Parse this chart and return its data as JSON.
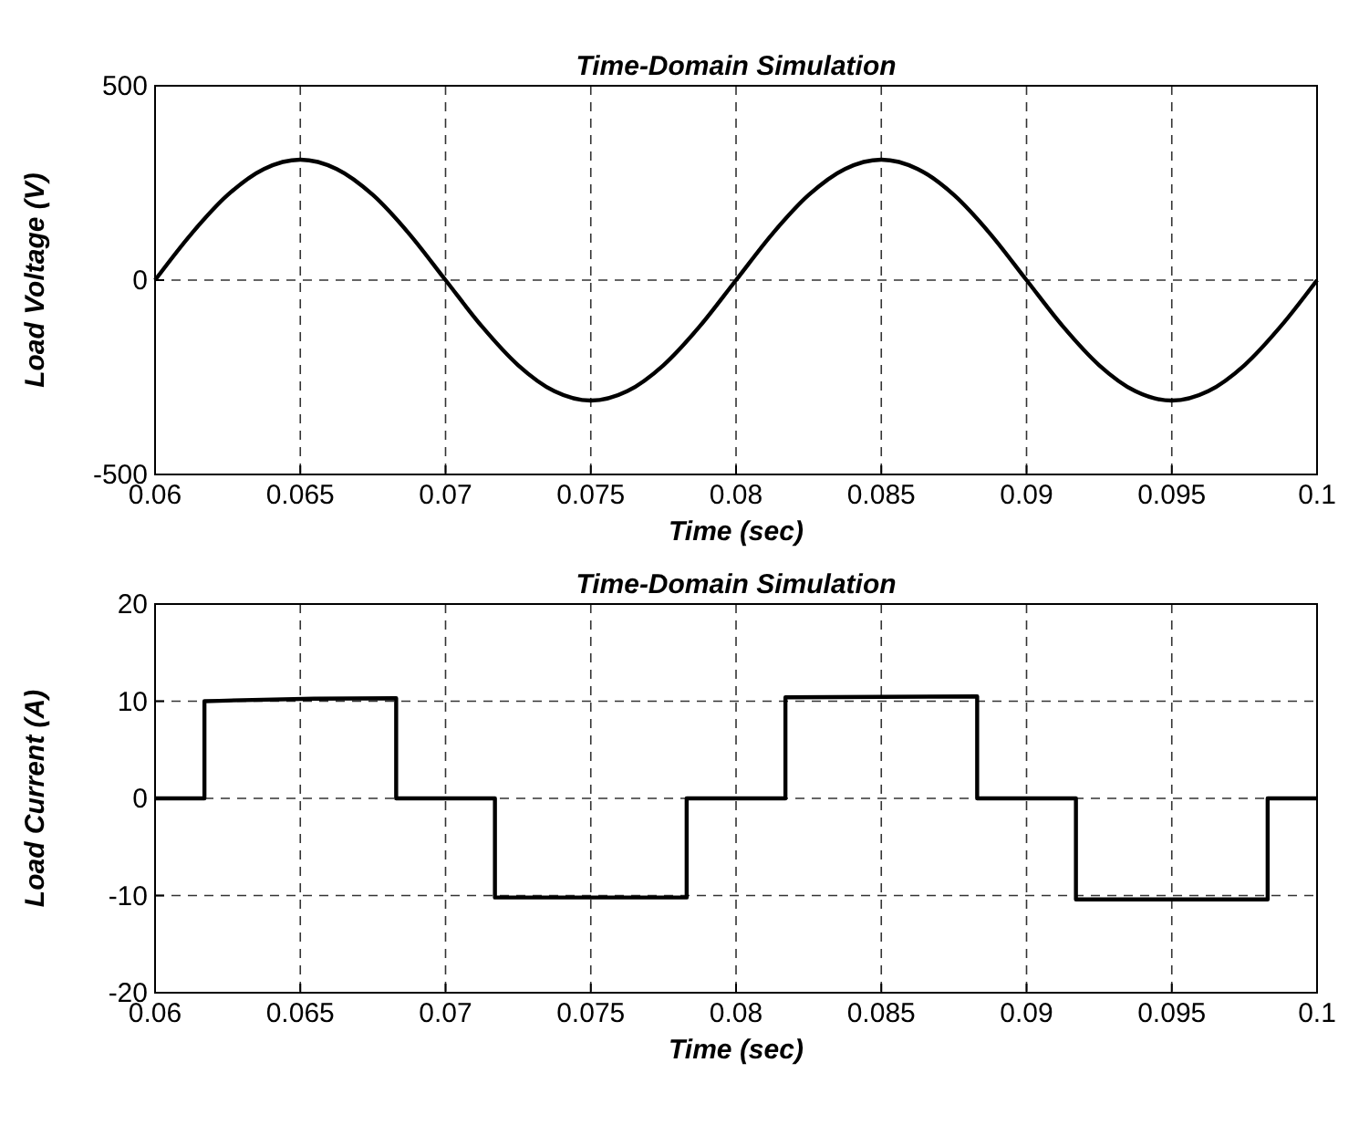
{
  "chart_data": [
    {
      "type": "line",
      "title": "Time-Domain Simulation",
      "xlabel": "Time (sec)",
      "ylabel": "Load Voltage (V)",
      "xlim": [
        0.06,
        0.1
      ],
      "ylim": [
        -500,
        500
      ],
      "xticks": [
        0.06,
        0.065,
        0.07,
        0.075,
        0.08,
        0.085,
        0.09,
        0.095,
        {
          "value": 0.1,
          "label": "0.1"
        }
      ],
      "yticks": [
        -500,
        0,
        500
      ],
      "grid": true,
      "line_style": "solid",
      "marker": "none",
      "series": [
        {
          "color": "#000000",
          "x": [
            0.06,
            0.06125,
            0.0625,
            0.06375,
            0.065,
            0.06625,
            0.0675,
            0.06875,
            0.07,
            0.07125,
            0.0725,
            0.07375,
            0.075,
            0.07625,
            0.0775,
            0.07875,
            0.08,
            0.08125,
            0.0825,
            0.08375,
            0.085,
            0.08625,
            0.0875,
            0.08875,
            0.09,
            0.09125,
            0.0925,
            0.09375,
            0.095,
            0.09625,
            0.0975,
            0.09875,
            0.1
          ],
          "values": [
            0,
            119,
            219,
            286,
            310,
            286,
            219,
            119,
            0,
            -119,
            -219,
            -286,
            -310,
            -286,
            -219,
            -119,
            0,
            119,
            219,
            286,
            310,
            286,
            219,
            119,
            0,
            -119,
            -219,
            -286,
            -310,
            -286,
            -219,
            -119,
            0
          ]
        }
      ]
    },
    {
      "type": "line",
      "title": "Time-Domain Simulation",
      "xlabel": "Time (sec)",
      "ylabel": "Load Current (A)",
      "xlim": [
        0.06,
        0.1
      ],
      "ylim": [
        -20,
        20
      ],
      "xticks": [
        0.06,
        0.065,
        0.07,
        0.075,
        0.08,
        0.085,
        0.09,
        0.095,
        {
          "value": 0.1,
          "label": "0.1"
        }
      ],
      "yticks": [
        -20,
        -10,
        0,
        10,
        20
      ],
      "grid": true,
      "line_style": "solid",
      "marker": "none",
      "series": [
        {
          "color": "#000000",
          "x": [
            0.06,
            0.0617,
            0.0617,
            0.0683,
            0.0683,
            0.0717,
            0.0717,
            0.0783,
            0.0783,
            0.0817,
            0.0817,
            0.0883,
            0.0883,
            0.0917,
            0.0917,
            0.0983,
            0.0983,
            0.1
          ],
          "values": [
            0,
            0,
            10,
            10.3,
            0,
            0,
            -10.2,
            -10.2,
            0,
            0,
            10.4,
            10.5,
            0,
            0,
            -10.4,
            -10.4,
            0,
            0
          ]
        }
      ]
    }
  ]
}
